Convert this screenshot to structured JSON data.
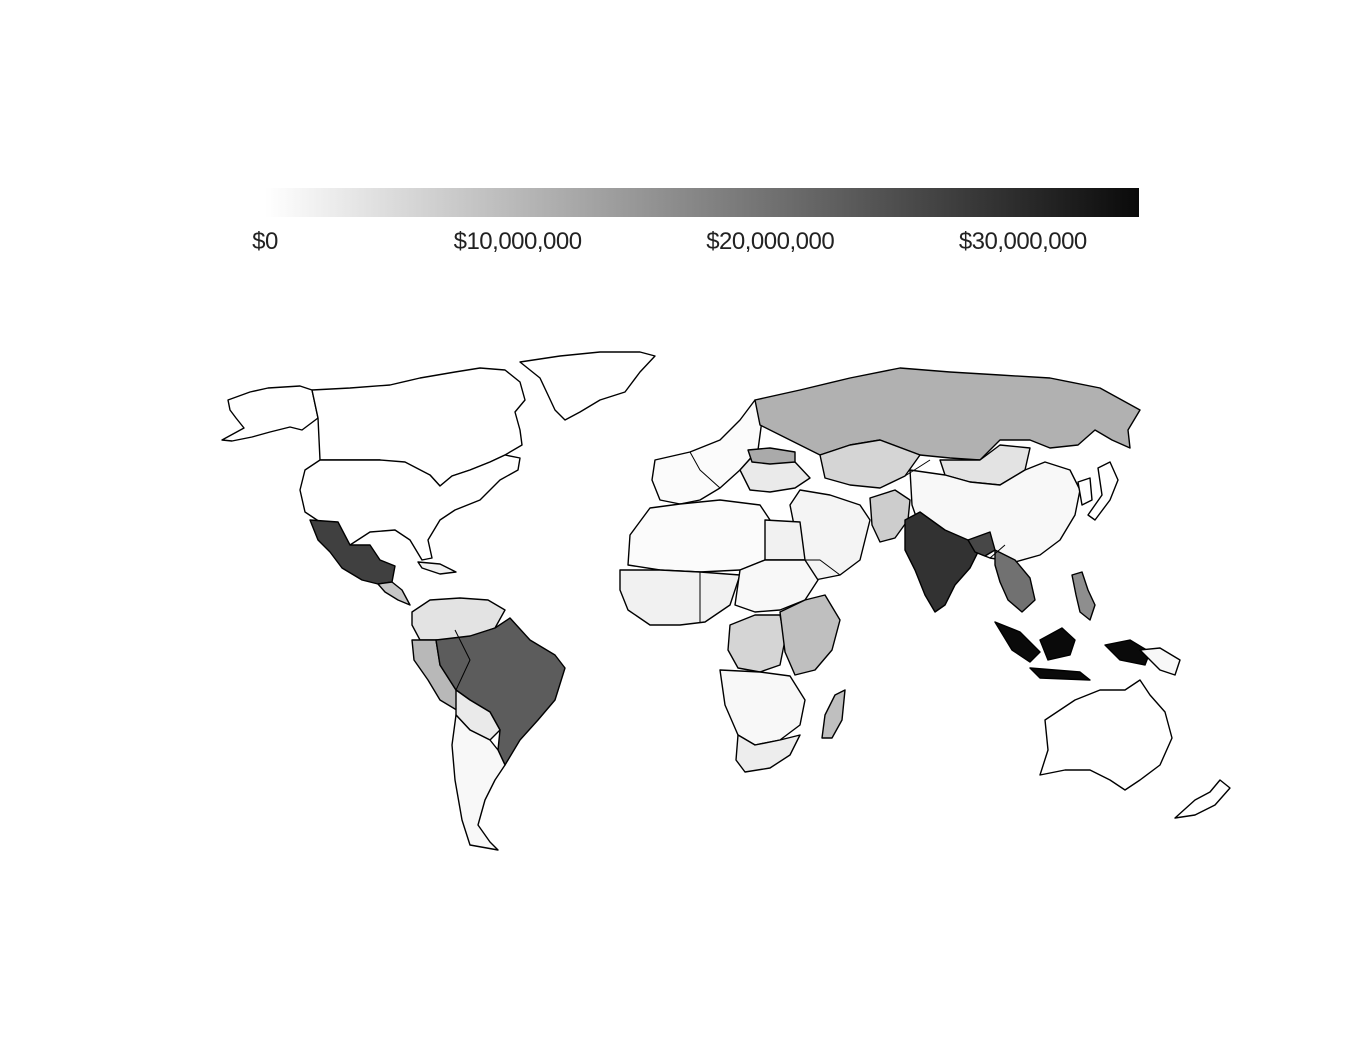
{
  "legend": {
    "gradient_start": "#ffffff",
    "gradient_end": "#0a0a0a",
    "ticks": [
      {
        "value": 0,
        "label": "$0"
      },
      {
        "value": 10000000,
        "label": "$10,000,000"
      },
      {
        "value": 20000000,
        "label": "$20,000,000"
      },
      {
        "value": 30000000,
        "label": "$30,000,000"
      }
    ],
    "max_value": 34600000
  },
  "map": {
    "colors": {
      "no_value": "#ffffff",
      "stroke": "#000000"
    },
    "regions": [
      {
        "name": "canada",
        "value": 0
      },
      {
        "name": "usa",
        "value": 0
      },
      {
        "name": "alaska",
        "value": 0
      },
      {
        "name": "greenland",
        "value": 0
      },
      {
        "name": "mexico",
        "value": 27000000
      },
      {
        "name": "central-america",
        "value": 8000000
      },
      {
        "name": "cuba",
        "value": 2000000
      },
      {
        "name": "colombia-venezuela",
        "value": 4000000
      },
      {
        "name": "peru-ecuador",
        "value": 10000000
      },
      {
        "name": "brazil",
        "value": 23000000
      },
      {
        "name": "bolivia-paraguay",
        "value": 3000000
      },
      {
        "name": "argentina-chile",
        "value": 1000000
      },
      {
        "name": "western-europe",
        "value": 500000
      },
      {
        "name": "eastern-europe",
        "value": 3000000
      },
      {
        "name": "ukraine",
        "value": 12000000
      },
      {
        "name": "russia",
        "value": 11000000
      },
      {
        "name": "kazakhstan",
        "value": 6000000
      },
      {
        "name": "middle-east",
        "value": 1500000
      },
      {
        "name": "egypt",
        "value": 2000000
      },
      {
        "name": "north-africa",
        "value": 500000
      },
      {
        "name": "west-africa",
        "value": 2000000
      },
      {
        "name": "central-africa",
        "value": 1000000
      },
      {
        "name": "drc",
        "value": 6000000
      },
      {
        "name": "east-africa",
        "value": 9000000
      },
      {
        "name": "southern-africa",
        "value": 1000000
      },
      {
        "name": "south-africa",
        "value": 2500000
      },
      {
        "name": "madagascar",
        "value": 9000000
      },
      {
        "name": "pakistan-afghanistan",
        "value": 7000000
      },
      {
        "name": "india",
        "value": 29000000
      },
      {
        "name": "bangladesh",
        "value": 26000000
      },
      {
        "name": "china",
        "value": 1000000
      },
      {
        "name": "mongolia",
        "value": 4000000
      },
      {
        "name": "japan",
        "value": 0
      },
      {
        "name": "korea",
        "value": 0
      },
      {
        "name": "southeast-asia-mainland",
        "value": 20000000
      },
      {
        "name": "philippines",
        "value": 16000000
      },
      {
        "name": "indonesia",
        "value": 34600000
      },
      {
        "name": "papua-new-guinea",
        "value": 1000000
      },
      {
        "name": "australia",
        "value": 0
      },
      {
        "name": "new-zealand",
        "value": 0
      }
    ]
  }
}
